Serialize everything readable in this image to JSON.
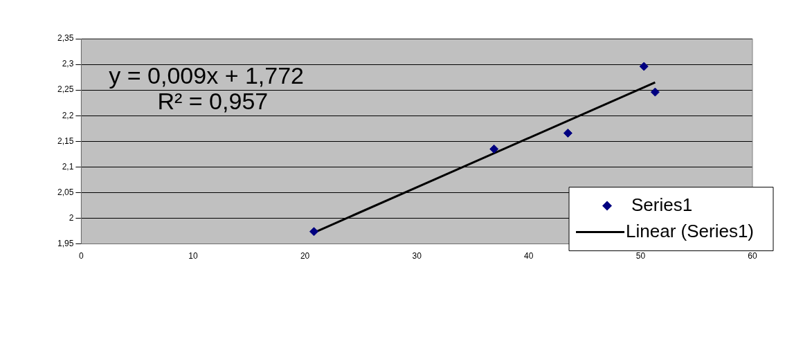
{
  "chart_data": {
    "type": "scatter",
    "annotations": [
      "y = 0,009x + 1,772",
      "R² = 0,957"
    ],
    "series": [
      {
        "name": "Series1",
        "marker": "diamond",
        "color": "#000080",
        "x": [
          20.8,
          36.9,
          43.5,
          50.3,
          51.3
        ],
        "values": [
          1.974,
          2.135,
          2.166,
          2.296,
          2.246
        ]
      },
      {
        "name": "Linear (Series1)",
        "type": "line",
        "marker": "none",
        "line_style": "solid",
        "color": "#000000",
        "x": [
          20.8,
          51.3
        ],
        "values": [
          1.972,
          2.265
        ]
      }
    ],
    "xlim": [
      0,
      60
    ],
    "xticks": [
      0,
      10,
      20,
      30,
      40,
      50,
      60
    ],
    "ylim": [
      1.95,
      2.35
    ],
    "yticks": [
      {
        "value": 1.95,
        "label": "1,95"
      },
      {
        "value": 2,
        "label": "2"
      },
      {
        "value": 2.05,
        "label": "2,05"
      },
      {
        "value": 2.1,
        "label": "2,1"
      },
      {
        "value": 2.15,
        "label": "2,15"
      },
      {
        "value": 2.2,
        "label": "2,2"
      },
      {
        "value": 2.25,
        "label": "2,25"
      },
      {
        "value": 2.3,
        "label": "2,3"
      },
      {
        "value": 2.35,
        "label": "2,35"
      }
    ],
    "grid": "y",
    "legend": "bottom right"
  }
}
